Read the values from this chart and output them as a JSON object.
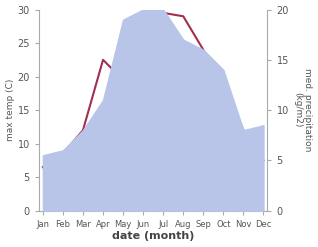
{
  "months": [
    "Jan",
    "Feb",
    "Mar",
    "Apr",
    "May",
    "Jun",
    "Jul",
    "Aug",
    "Sep",
    "Oct",
    "Nov",
    "Dec"
  ],
  "temp": [
    6.5,
    8.5,
    12.0,
    22.5,
    19.5,
    28.5,
    29.5,
    29.0,
    24.0,
    19.0,
    12.0,
    7.5
  ],
  "precip": [
    5.5,
    6.0,
    8.0,
    11.0,
    19.0,
    20.0,
    20.0,
    17.0,
    16.0,
    14.0,
    8.0,
    8.5
  ],
  "temp_color": "#a03050",
  "precip_fill_color": "#b8c4e8",
  "temp_ylim": [
    0,
    30
  ],
  "precip_ylim": [
    0,
    20
  ],
  "temp_yticks": [
    0,
    5,
    10,
    15,
    20,
    25,
    30
  ],
  "precip_yticks": [
    0,
    5,
    10,
    15,
    20
  ],
  "xlabel": "date (month)",
  "ylabel_left": "max temp (C)",
  "ylabel_right": "med. precipitation\n(kg/m2)",
  "temp_linewidth": 1.5,
  "background_color": "#ffffff"
}
